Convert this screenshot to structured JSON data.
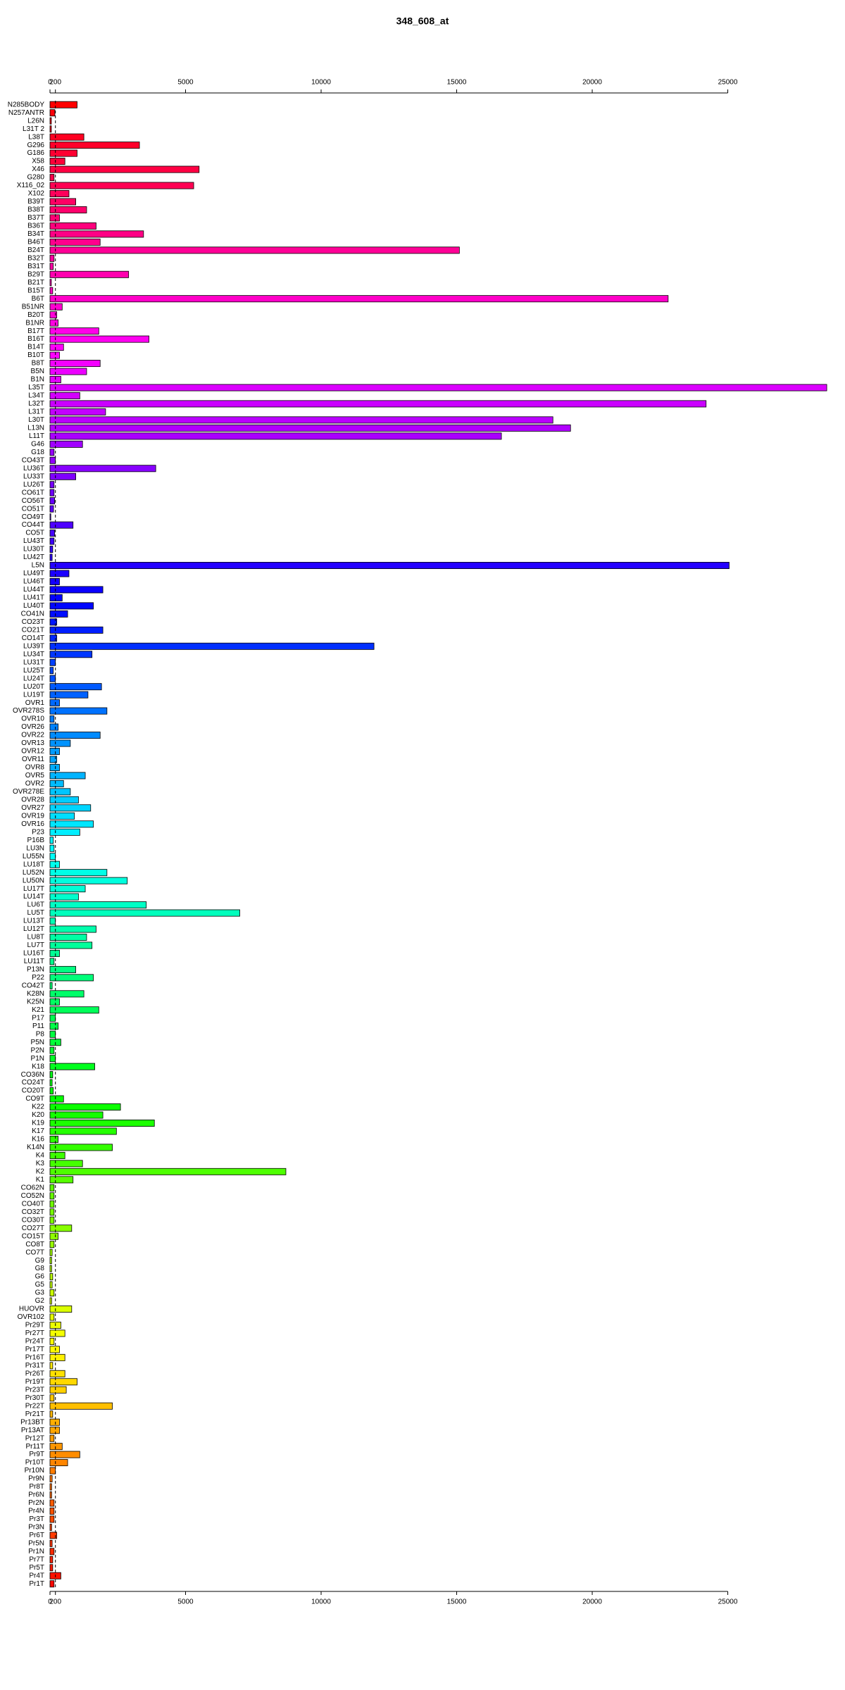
{
  "chart_data": {
    "type": "barh",
    "title": "348_608_at",
    "categories": [
      "N285BODY",
      "N257ANTR",
      "L26N",
      "L31T 2",
      "L38T",
      "G296",
      "G186",
      "X58",
      "X46",
      "G280",
      "X116_02",
      "X102",
      "B39T",
      "B38T",
      "B37T",
      "B36T",
      "B34T",
      "B46T",
      "B24T",
      "B32T",
      "B31T",
      "B29T",
      "B21T",
      "B15T",
      "B6T",
      "B51NR",
      "B20T",
      "B1NR",
      "B17T",
      "B16T",
      "B14T",
      "B10T",
      "B8T",
      "B5N",
      "B1N",
      "L35T",
      "L34T",
      "L32T",
      "L31T",
      "L30T",
      "L13N",
      "L11T",
      "G46",
      "G18",
      "CO43T",
      "LU36T",
      "LU33T",
      "LU26T",
      "CO61T",
      "CO56T",
      "CO51T",
      "CO49T",
      "CO44T",
      "CO5T",
      "LU43T",
      "LU30T",
      "LU42T",
      "L5N",
      "LU49T",
      "LU46T",
      "LU44T",
      "LU41T",
      "LU40T",
      "CO41N",
      "CO23T",
      "CO21T",
      "CO14T",
      "LU39T",
      "LU34T",
      "LU31T",
      "LU25T",
      "LU24T",
      "LU20T",
      "LU19T",
      "OVR1",
      "OVR278S",
      "OVR10",
      "OVR26",
      "OVR22",
      "OVR13",
      "OVR12",
      "OVR11",
      "OVR8",
      "OVR5",
      "OVR2",
      "OVR278E",
      "OVR28",
      "OVR27",
      "OVR19",
      "OVR16",
      "P23",
      "P16B",
      "LU3N",
      "LU55N",
      "LU18T",
      "LU52N",
      "LU50N",
      "LU17T",
      "LU14T",
      "LU6T",
      "LU5T",
      "LU13T",
      "LU12T",
      "LU8T",
      "LU7T",
      "LU16T",
      "LU11T",
      "P13N",
      "P22",
      "CO42T",
      "K28N",
      "K25N",
      "K21",
      "P17",
      "P11",
      "P8",
      "P5N",
      "P2N",
      "P1N",
      "K18",
      "CO36N",
      "CO24T",
      "CO20T",
      "CO9T",
      "K22",
      "K20",
      "K19",
      "K17",
      "K16",
      "K14N",
      "K4",
      "K3",
      "K2",
      "K1",
      "CO62N",
      "CO52N",
      "CO40T",
      "CO32T",
      "CO30T",
      "CO27T",
      "CO15T",
      "CO8T",
      "CO7T",
      "G9",
      "G8",
      "G6",
      "G5",
      "G3",
      "G2",
      "HUOVR",
      "OVR102",
      "Pr29T",
      "Pr27T",
      "Pr24T",
      "Pr17T",
      "Pr16T",
      "Pr31T",
      "Pr26T",
      "Pr19T",
      "Pr23T",
      "Pr30T",
      "Pr22T",
      "Pr21T",
      "Pr13BT",
      "Pr13AT",
      "Pr12T",
      "Pr11T",
      "Pr9T",
      "Pr10T",
      "Pr10N",
      "Pr9N",
      "Pr8T",
      "Pr6N",
      "Pr2N",
      "Pr4N",
      "Pr3T",
      "Pr3N",
      "Pr6T",
      "Pr5N",
      "Pr1N",
      "Pr7T",
      "Pr5T",
      "Pr4T",
      "Pr1T"
    ],
    "values": [
      1000,
      180,
      50,
      50,
      1250,
      3300,
      1000,
      550,
      5500,
      150,
      5300,
      700,
      950,
      1350,
      350,
      1700,
      3450,
      1850,
      15100,
      150,
      120,
      2900,
      50,
      100,
      22800,
      450,
      250,
      300,
      1800,
      3650,
      500,
      350,
      1850,
      1350,
      400,
      28650,
      1100,
      24200,
      2050,
      18550,
      19200,
      16650,
      1200,
      150,
      200,
      3900,
      950,
      150,
      150,
      170,
      130,
      30,
      850,
      170,
      150,
      100,
      80,
      25050,
      700,
      350,
      1950,
      450,
      1600,
      650,
      250,
      1950,
      250,
      11950,
      1550,
      200,
      120,
      200,
      1900,
      1400,
      350,
      2100,
      150,
      300,
      1850,
      750,
      350,
      250,
      350,
      1300,
      500,
      750,
      1050,
      1500,
      900,
      1600,
      1100,
      120,
      150,
      200,
      350,
      2100,
      2850,
      1300,
      1050,
      3550,
      7000,
      200,
      1700,
      1350,
      1550,
      350,
      150,
      950,
      1600,
      80,
      1250,
      350,
      1800,
      200,
      300,
      200,
      400,
      150,
      200,
      1650,
      100,
      80,
      120,
      500,
      2600,
      1950,
      3850,
      2450,
      300,
      2300,
      550,
      1200,
      8700,
      850,
      150,
      150,
      150,
      150,
      150,
      800,
      300,
      150,
      80,
      60,
      60,
      100,
      80,
      150,
      60,
      800,
      150,
      400,
      550,
      150,
      350,
      550,
      100,
      550,
      1000,
      600,
      150,
      2300,
      100,
      350,
      350,
      150,
      450,
      1100,
      650,
      200,
      80,
      60,
      60,
      150,
      150,
      150,
      60,
      250,
      80,
      150,
      100,
      100,
      400,
      150
    ],
    "color_scale": "rainbow",
    "xlim": [
      0,
      28700
    ],
    "xticks": [
      0,
      200,
      5000,
      10000,
      15000,
      20000,
      25000
    ],
    "reference_line": 200
  }
}
